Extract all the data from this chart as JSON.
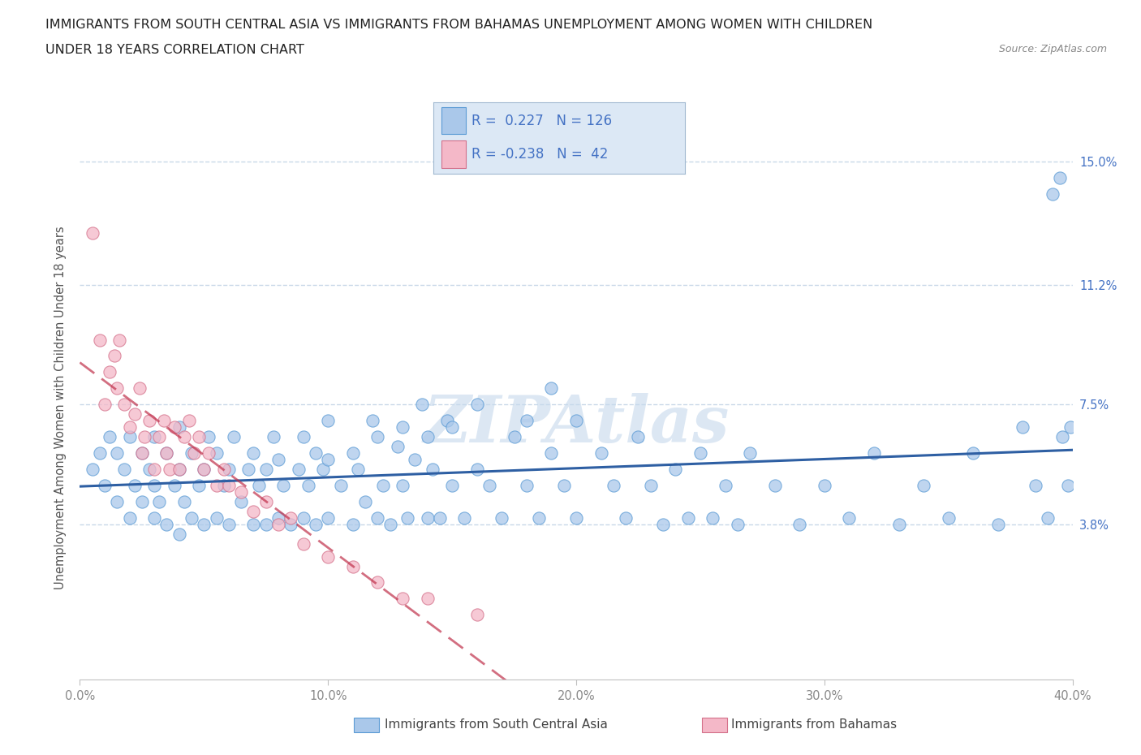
{
  "title_line1": "IMMIGRANTS FROM SOUTH CENTRAL ASIA VS IMMIGRANTS FROM BAHAMAS UNEMPLOYMENT AMONG WOMEN WITH CHILDREN",
  "title_line2": "UNDER 18 YEARS CORRELATION CHART",
  "source_text": "Source: ZipAtlas.com",
  "ylabel": "Unemployment Among Women with Children Under 18 years",
  "xlim": [
    0.0,
    0.4
  ],
  "ylim": [
    -0.01,
    0.158
  ],
  "ylim_display": [
    0.0,
    0.155
  ],
  "yticks": [
    0.038,
    0.075,
    0.112,
    0.15
  ],
  "ytick_labels": [
    "3.8%",
    "7.5%",
    "11.2%",
    "15.0%"
  ],
  "xticks": [
    0.0,
    0.1,
    0.2,
    0.3,
    0.4
  ],
  "xtick_labels": [
    "0.0%",
    "10.0%",
    "20.0%",
    "30.0%",
    "40.0%"
  ],
  "blue_dot_color": "#aac8ea",
  "blue_edge_color": "#5b9bd5",
  "pink_dot_color": "#f4b8c8",
  "pink_edge_color": "#d4708a",
  "line_blue_color": "#2e5fa3",
  "line_pink_color": "#c0304a",
  "line_pink_dashed": true,
  "legend_box_color": "#dce8f5",
  "legend_border_color": "#a0b8d0",
  "legend_text_color": "#4472c4",
  "R_blue": 0.227,
  "N_blue": 126,
  "R_pink": -0.238,
  "N_pink": 42,
  "watermark_text": "ZIPAtlas",
  "watermark_color": "#c5d8ec",
  "grid_color": "#c8d8e8",
  "grid_style": "--",
  "blue_scatter_x": [
    0.005,
    0.008,
    0.01,
    0.012,
    0.015,
    0.015,
    0.018,
    0.02,
    0.02,
    0.022,
    0.025,
    0.025,
    0.028,
    0.03,
    0.03,
    0.03,
    0.032,
    0.035,
    0.035,
    0.038,
    0.04,
    0.04,
    0.04,
    0.042,
    0.045,
    0.045,
    0.048,
    0.05,
    0.05,
    0.052,
    0.055,
    0.055,
    0.058,
    0.06,
    0.06,
    0.062,
    0.065,
    0.068,
    0.07,
    0.07,
    0.072,
    0.075,
    0.075,
    0.078,
    0.08,
    0.08,
    0.082,
    0.085,
    0.088,
    0.09,
    0.09,
    0.092,
    0.095,
    0.095,
    0.098,
    0.1,
    0.1,
    0.1,
    0.105,
    0.11,
    0.11,
    0.112,
    0.115,
    0.118,
    0.12,
    0.12,
    0.122,
    0.125,
    0.128,
    0.13,
    0.13,
    0.132,
    0.135,
    0.138,
    0.14,
    0.14,
    0.142,
    0.145,
    0.148,
    0.15,
    0.15,
    0.155,
    0.16,
    0.16,
    0.165,
    0.17,
    0.175,
    0.18,
    0.18,
    0.185,
    0.19,
    0.19,
    0.195,
    0.2,
    0.2,
    0.21,
    0.215,
    0.22,
    0.225,
    0.23,
    0.235,
    0.24,
    0.245,
    0.25,
    0.255,
    0.26,
    0.265,
    0.27,
    0.28,
    0.29,
    0.3,
    0.31,
    0.32,
    0.33,
    0.34,
    0.35,
    0.36,
    0.37,
    0.38,
    0.385,
    0.39,
    0.392,
    0.395,
    0.396,
    0.398,
    0.399
  ],
  "blue_scatter_y": [
    0.055,
    0.06,
    0.05,
    0.065,
    0.045,
    0.06,
    0.055,
    0.04,
    0.065,
    0.05,
    0.045,
    0.06,
    0.055,
    0.04,
    0.05,
    0.065,
    0.045,
    0.038,
    0.06,
    0.05,
    0.035,
    0.055,
    0.068,
    0.045,
    0.04,
    0.06,
    0.05,
    0.038,
    0.055,
    0.065,
    0.04,
    0.06,
    0.05,
    0.038,
    0.055,
    0.065,
    0.045,
    0.055,
    0.038,
    0.06,
    0.05,
    0.038,
    0.055,
    0.065,
    0.04,
    0.058,
    0.05,
    0.038,
    0.055,
    0.04,
    0.065,
    0.05,
    0.038,
    0.06,
    0.055,
    0.04,
    0.058,
    0.07,
    0.05,
    0.038,
    0.06,
    0.055,
    0.045,
    0.07,
    0.04,
    0.065,
    0.05,
    0.038,
    0.062,
    0.05,
    0.068,
    0.04,
    0.058,
    0.075,
    0.04,
    0.065,
    0.055,
    0.04,
    0.07,
    0.05,
    0.068,
    0.04,
    0.055,
    0.075,
    0.05,
    0.04,
    0.065,
    0.05,
    0.07,
    0.04,
    0.06,
    0.08,
    0.05,
    0.04,
    0.07,
    0.06,
    0.05,
    0.04,
    0.065,
    0.05,
    0.038,
    0.055,
    0.04,
    0.06,
    0.04,
    0.05,
    0.038,
    0.06,
    0.05,
    0.038,
    0.05,
    0.04,
    0.06,
    0.038,
    0.05,
    0.04,
    0.06,
    0.038,
    0.068,
    0.05,
    0.04,
    0.14,
    0.145,
    0.065,
    0.05,
    0.068
  ],
  "pink_scatter_x": [
    0.005,
    0.008,
    0.01,
    0.012,
    0.014,
    0.015,
    0.016,
    0.018,
    0.02,
    0.022,
    0.024,
    0.025,
    0.026,
    0.028,
    0.03,
    0.032,
    0.034,
    0.035,
    0.036,
    0.038,
    0.04,
    0.042,
    0.044,
    0.046,
    0.048,
    0.05,
    0.052,
    0.055,
    0.058,
    0.06,
    0.065,
    0.07,
    0.075,
    0.08,
    0.085,
    0.09,
    0.1,
    0.11,
    0.12,
    0.13,
    0.14,
    0.16
  ],
  "pink_scatter_y": [
    0.128,
    0.095,
    0.075,
    0.085,
    0.09,
    0.08,
    0.095,
    0.075,
    0.068,
    0.072,
    0.08,
    0.06,
    0.065,
    0.07,
    0.055,
    0.065,
    0.07,
    0.06,
    0.055,
    0.068,
    0.055,
    0.065,
    0.07,
    0.06,
    0.065,
    0.055,
    0.06,
    0.05,
    0.055,
    0.05,
    0.048,
    0.042,
    0.045,
    0.038,
    0.04,
    0.032,
    0.028,
    0.025,
    0.02,
    0.015,
    0.015,
    0.01
  ]
}
